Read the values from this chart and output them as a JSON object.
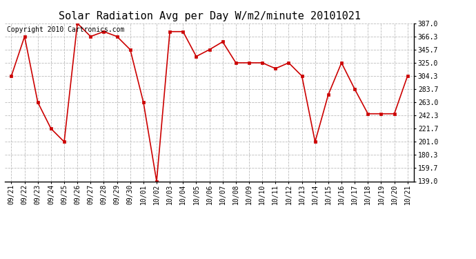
{
  "title": "Solar Radiation Avg per Day W/m2/minute 20101021",
  "copyright_text": "Copyright 2010 Cartronics.com",
  "dates": [
    "09/21",
    "09/22",
    "09/23",
    "09/24",
    "09/25",
    "09/26",
    "09/27",
    "09/28",
    "09/29",
    "09/30",
    "10/01",
    "10/02",
    "10/03",
    "10/04",
    "10/05",
    "10/06",
    "10/07",
    "10/08",
    "10/09",
    "10/10",
    "10/11",
    "10/12",
    "10/13",
    "10/14",
    "10/15",
    "10/16",
    "10/17",
    "10/18",
    "10/19",
    "10/20",
    "10/21"
  ],
  "values": [
    304.3,
    366.3,
    263.0,
    221.7,
    201.0,
    387.0,
    366.3,
    374.0,
    366.3,
    345.7,
    263.0,
    139.0,
    374.0,
    374.0,
    335.0,
    345.7,
    358.0,
    325.0,
    325.0,
    325.0,
    316.0,
    325.0,
    304.3,
    201.0,
    275.0,
    325.0,
    283.7,
    245.0,
    245.0,
    245.0,
    304.3
  ],
  "line_color": "#cc0000",
  "marker_color": "#cc0000",
  "bg_color": "#ffffff",
  "grid_color": "#bbbbbb",
  "ylim": [
    139.0,
    387.0
  ],
  "yticks": [
    139.0,
    159.7,
    180.3,
    201.0,
    221.7,
    242.3,
    263.0,
    283.7,
    304.3,
    325.0,
    345.7,
    366.3,
    387.0
  ],
  "title_fontsize": 11,
  "tick_fontsize": 7,
  "copyright_fontsize": 7
}
